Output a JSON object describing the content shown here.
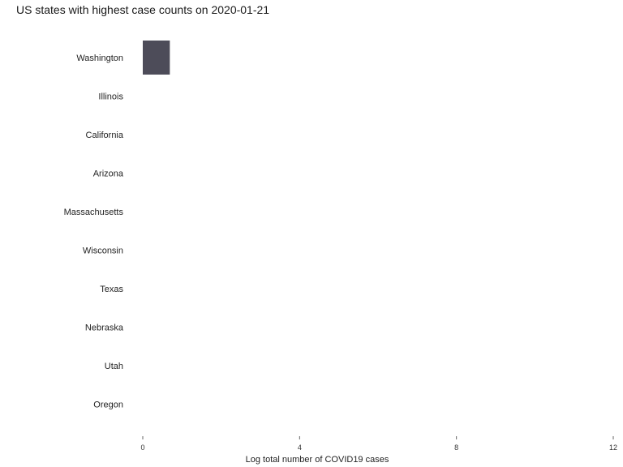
{
  "chart_data": {
    "type": "bar",
    "orientation": "horizontal",
    "title": "US states with highest case counts on 2020-01-21",
    "xlabel": "Log total number of COVID19 cases",
    "ylabel": "",
    "categories": [
      "Washington",
      "Illinois",
      "California",
      "Arizona",
      "Massachusetts",
      "Wisconsin",
      "Texas",
      "Nebraska",
      "Utah",
      "Oregon"
    ],
    "values": [
      0.69,
      0,
      0,
      0,
      0,
      0,
      0,
      0,
      0,
      0
    ],
    "xlim": [
      0,
      12
    ],
    "xticks": [
      0,
      4,
      8,
      12
    ],
    "grid": false,
    "bar_color": "#4d4c59"
  }
}
